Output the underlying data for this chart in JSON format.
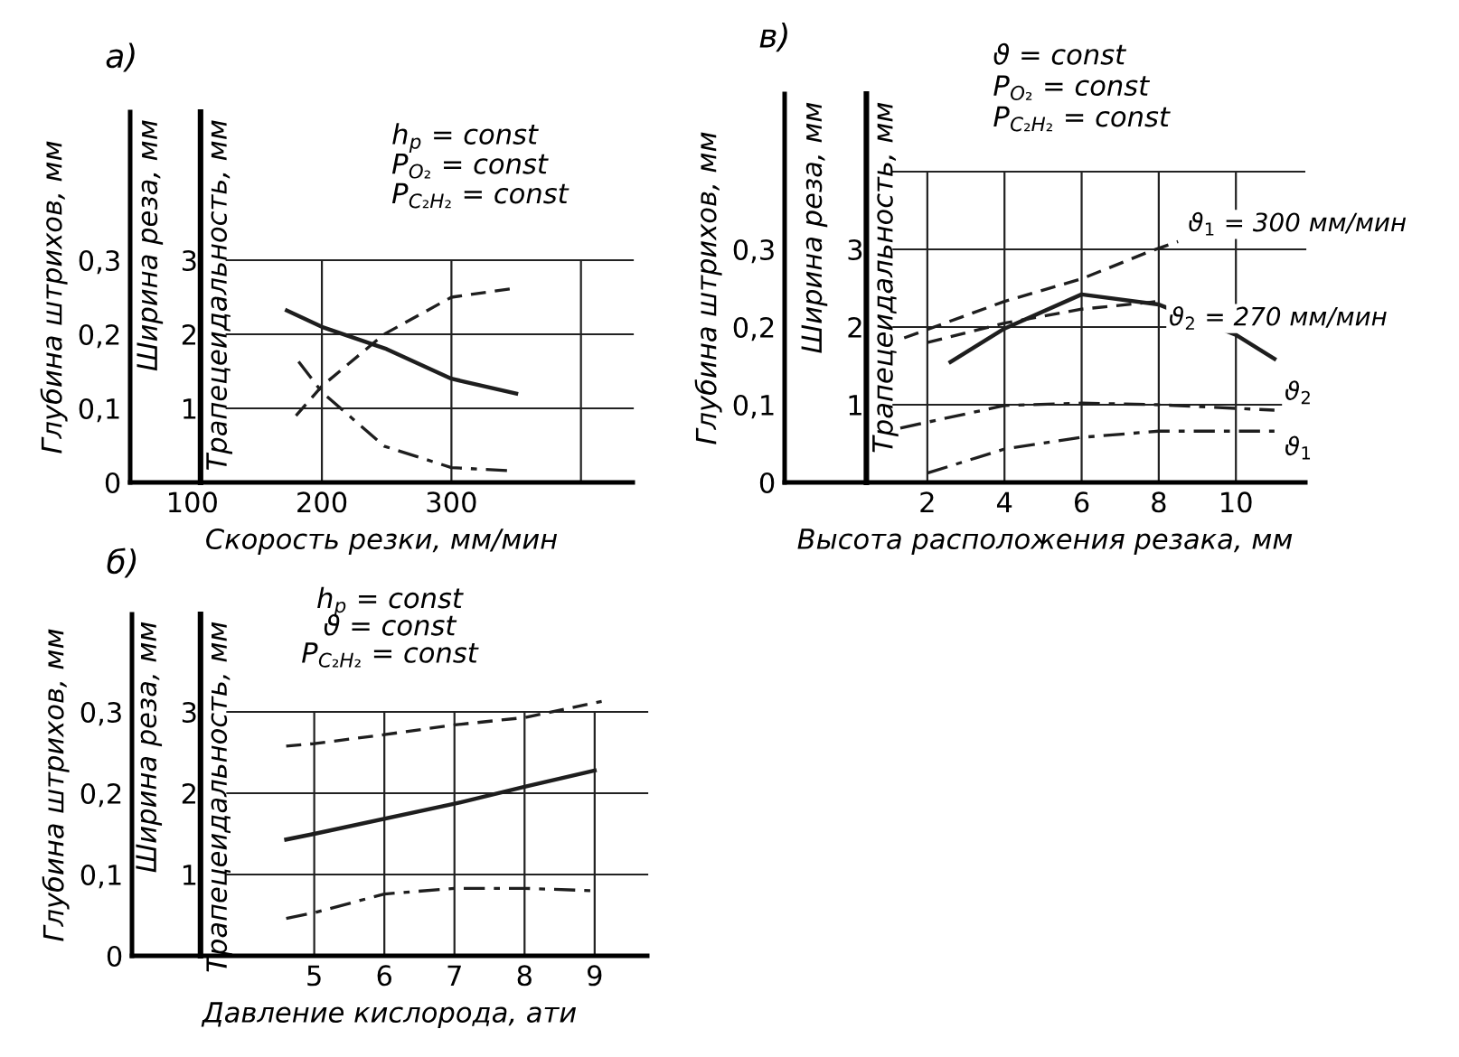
{
  "chart_data": [
    {
      "type": "line",
      "title": "а)",
      "xlabel": "Скорость резки, мм/мин",
      "ylabel": "Глубина штрихов, мм",
      "y2label": "Ширина реза, мм",
      "y3label": "Трапецеидальность, мм",
      "xlim": [
        52,
        440
      ],
      "xticks": [
        100,
        200,
        300,
        {
          "value": 400,
          "label": null
        }
      ],
      "ylim": [
        0,
        0.5
      ],
      "yticks": [
        {
          "value": 0,
          "label": "0"
        },
        {
          "value": 0.1,
          "label": "0,1"
        },
        {
          "value": 0.2,
          "label": "0,2"
        },
        {
          "value": 0.3,
          "label": "0,3"
        }
      ],
      "y2lim": [
        0,
        5
      ],
      "y2ticks": [
        1,
        2,
        3
      ],
      "grid": true,
      "legend": false,
      "annotations": [
        "h$_{p}$ = const",
        "P$_{O₂}$ = const",
        "P$_{C₂H₂}$ = const"
      ],
      "series": [
        {
          "color": "#1e1e1e",
          "line_style": "solid",
          "x": [
            173,
            200,
            250,
            300,
            350
          ],
          "values": [
            0.232,
            0.21,
            0.18,
            0.14,
            0.12
          ]
        },
        {
          "color": "#1e1e1e",
          "line_style": "dashed",
          "x": [
            180,
            200,
            248,
            300,
            348
          ],
          "values": [
            0.09,
            0.13,
            0.2,
            0.25,
            0.262
          ]
        },
        {
          "color": "#1e1e1e",
          "line_style": "dashdot",
          "x": [
            182,
            200,
            248,
            300,
            343
          ],
          "values": [
            0.163,
            0.122,
            0.049,
            0.02,
            0.016
          ]
        }
      ]
    },
    {
      "type": "line",
      "title": "в)",
      "xlabel": "Высота расположения резака, мм",
      "ylabel": "Глубина штрихов, мм",
      "y2label": "Ширина реза, мм",
      "y3label": "Трапецеидальность, мм",
      "xlim": [
        -1.7,
        11.8
      ],
      "xticks": [
        2,
        4,
        6,
        8,
        10
      ],
      "ylim": [
        0,
        0.5
      ],
      "yticks": [
        {
          "value": 0,
          "label": "0"
        },
        {
          "value": 0.1,
          "label": "0,1"
        },
        {
          "value": 0.2,
          "label": "0,2"
        },
        {
          "value": 0.3,
          "label": "0,3"
        }
      ],
      "ref_lines": [
        {
          "axis": "y",
          "value": 0.4,
          "color": "#222222"
        }
      ],
      "y2lim": [
        0,
        5
      ],
      "y2ticks": [
        1,
        2,
        3
      ],
      "grid": true,
      "legend": false,
      "annotations": [
        "ϑ = const",
        "P$_{O₂}$ = const",
        "P$_{C₂H₂}$ = const"
      ],
      "series": [
        {
          "name": "ϑ$_{1}$ = 300 мм/мин",
          "color": "#1e1e1e",
          "line_style": "dashed",
          "x": [
            1.4,
            4,
            6,
            7.8,
            8.5
          ],
          "values": [
            0.186,
            0.233,
            0.262,
            0.298,
            0.31
          ]
        },
        {
          "name": "ϑ$_{2}$ = 270 мм/мин",
          "color": "#1e1e1e",
          "line_style": "dashed",
          "x": [
            2,
            4,
            6,
            8
          ],
          "values": [
            0.18,
            0.205,
            0.223,
            0.233
          ]
        },
        {
          "color": "#1e1e1e",
          "line_style": "solid",
          "x": [
            2.6,
            4,
            6,
            8,
            10,
            11
          ],
          "values": [
            0.155,
            0.198,
            0.242,
            0.229,
            0.19,
            0.159
          ]
        },
        {
          "name": "ϑ$_{2}$",
          "color": "#1e1e1e",
          "line_style": "dashdot",
          "x": [
            1.3,
            4,
            6,
            8,
            11
          ],
          "values": [
            0.07,
            0.099,
            0.102,
            0.1,
            0.093
          ]
        },
        {
          "name": "ϑ$_{1}$",
          "color": "#1e1e1e",
          "line_style": "dashdot",
          "x": [
            2,
            4,
            6,
            8,
            11
          ],
          "values": [
            0.012,
            0.043,
            0.058,
            0.066,
            0.066
          ]
        }
      ]
    },
    {
      "type": "line",
      "title": "б)",
      "xlabel": "Давление кислорода, ати",
      "ylabel": "Глубина штрихов, мм",
      "y2label": "Ширина реза, мм",
      "y3label": "Трапецеидальность, мм",
      "xlim": [
        2.4,
        9.75
      ],
      "xticks": [
        5,
        6,
        7,
        8,
        9
      ],
      "ylim": [
        0,
        0.42
      ],
      "yticks": [
        {
          "value": 0,
          "label": "0"
        },
        {
          "value": 0.1,
          "label": "0,1"
        },
        {
          "value": 0.2,
          "label": "0,2"
        },
        {
          "value": 0.3,
          "label": "0,3"
        }
      ],
      "y2lim": [
        0,
        4.2
      ],
      "y2ticks": [
        1,
        2,
        3
      ],
      "grid": true,
      "legend": false,
      "annotations": [
        "h$_{p}$ = const",
        "ϑ = const",
        "P$_{C₂H₂}$ = const"
      ],
      "series": [
        {
          "color": "#1e1e1e",
          "line_style": "solid",
          "x": [
            4.6,
            5,
            7,
            8,
            9
          ],
          "values": [
            0.143,
            0.15,
            0.187,
            0.208,
            0.228
          ]
        },
        {
          "color": "#1e1e1e",
          "line_style": "dashed",
          "x": [
            4.6,
            5,
            6,
            7,
            8,
            9.1
          ],
          "values": [
            0.258,
            0.261,
            0.272,
            0.284,
            0.293,
            0.313
          ]
        },
        {
          "color": "#1e1e1e",
          "line_style": "dashdot",
          "x": [
            4.6,
            5,
            6,
            7,
            8,
            9
          ],
          "values": [
            0.046,
            0.053,
            0.076,
            0.083,
            0.083,
            0.08
          ]
        }
      ]
    }
  ]
}
